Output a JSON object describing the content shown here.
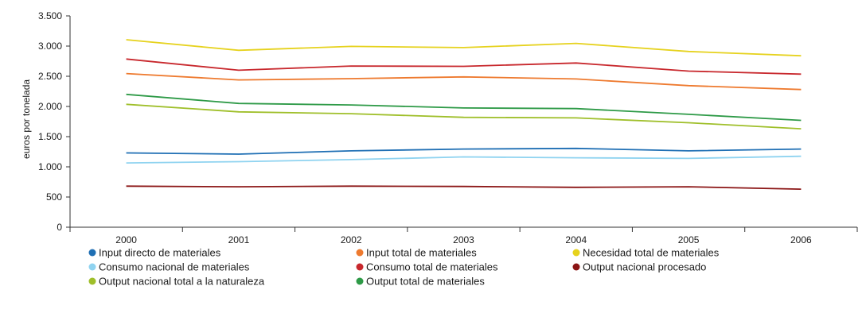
{
  "chart_data": {
    "type": "line",
    "title": "",
    "xlabel": "",
    "ylabel": "euros por tonelada",
    "x": [
      "2000",
      "2001",
      "2002",
      "2003",
      "2004",
      "2005",
      "2006"
    ],
    "ylim": [
      0,
      3500
    ],
    "yticks": [
      0,
      500,
      1000,
      1500,
      2000,
      2500,
      3000,
      3500
    ],
    "ytick_labels": [
      "0",
      "500",
      "1.000",
      "1.500",
      "2.000",
      "2.500",
      "3.000",
      "3.500"
    ],
    "grid": false,
    "legend_position": "bottom",
    "series": [
      {
        "name": "Input directo de materiales",
        "color": "#1f6fb4",
        "values": [
          1230,
          1210,
          1265,
          1295,
          1305,
          1265,
          1295
        ]
      },
      {
        "name": "Input total de materiales",
        "color": "#ee7a2f",
        "values": [
          2545,
          2440,
          2460,
          2490,
          2455,
          2345,
          2280
        ]
      },
      {
        "name": "Necesidad total de materiales",
        "color": "#e6d21e",
        "values": [
          3105,
          2930,
          2995,
          2975,
          3045,
          2910,
          2840
        ]
      },
      {
        "name": "Consumo nacional de materiales",
        "color": "#8fd3f0",
        "values": [
          1065,
          1085,
          1120,
          1165,
          1150,
          1140,
          1175
        ]
      },
      {
        "name": "Consumo total de materiales",
        "color": "#c8282d",
        "values": [
          2785,
          2600,
          2670,
          2665,
          2720,
          2585,
          2535
        ]
      },
      {
        "name": "Output nacional procesado",
        "color": "#8b1515",
        "values": [
          680,
          670,
          680,
          675,
          660,
          670,
          630
        ]
      },
      {
        "name": "Output nacional total a la naturaleza",
        "color": "#9fbf2a",
        "values": [
          2035,
          1910,
          1880,
          1820,
          1810,
          1730,
          1630
        ]
      },
      {
        "name": "Output total de materiales",
        "color": "#2e9a47",
        "values": [
          2200,
          2050,
          2025,
          1975,
          1965,
          1870,
          1770
        ]
      }
    ]
  }
}
